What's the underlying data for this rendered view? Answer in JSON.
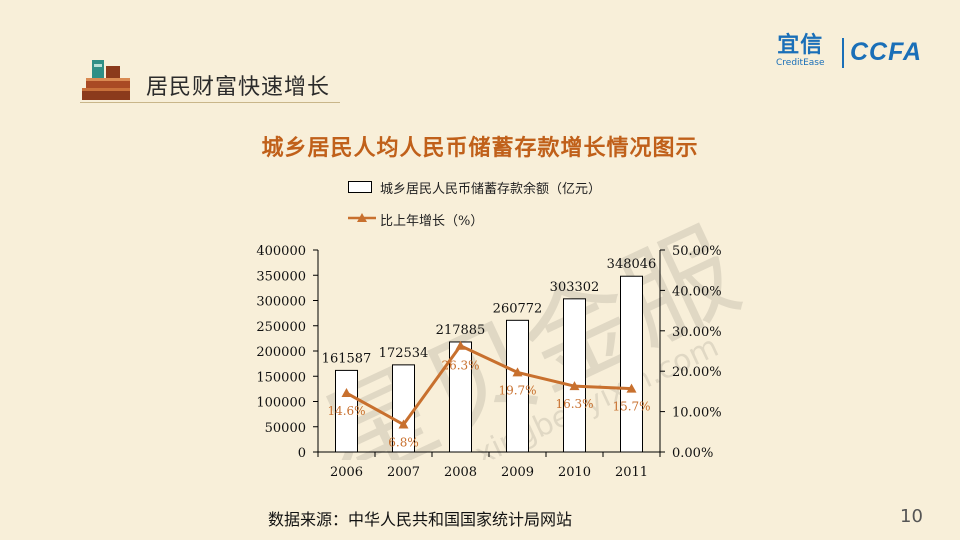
{
  "header": {
    "section_title": "居民财富快速增长"
  },
  "logos": {
    "yixin_cn": "宜信",
    "yixin_en": "CreditEase",
    "ccfa": "CCFA"
  },
  "chart_data": {
    "type": "bar+line",
    "title": "城乡居民人均人民币储蓄存款增长情况图示",
    "categories": [
      "2006",
      "2007",
      "2008",
      "2009",
      "2010",
      "2011"
    ],
    "series": [
      {
        "name": "城乡居民人民币储蓄存款余额（亿元）",
        "type": "bar",
        "axis": "left",
        "values": [
          161587,
          172534,
          217885,
          260772,
          303302,
          348046
        ],
        "labels": [
          "161587",
          "172534",
          "217885",
          "260772",
          "303302",
          "348046"
        ]
      },
      {
        "name": "比上年增长（%）",
        "type": "line",
        "axis": "right",
        "values": [
          14.6,
          6.8,
          26.3,
          19.7,
          16.3,
          15.7
        ],
        "labels": [
          "14.6%",
          "6.8%",
          "26.3%",
          "19.7%",
          "16.3%",
          "15.7%"
        ]
      }
    ],
    "y_left": {
      "range": [
        0,
        400000
      ],
      "ticks": [
        "0",
        "50000",
        "100000",
        "150000",
        "200000",
        "250000",
        "300000",
        "350000",
        "400000"
      ]
    },
    "y_right": {
      "range": [
        0,
        50
      ],
      "ticks": [
        "0.00%",
        "10.00%",
        "20.00%",
        "30.00%",
        "40.00%",
        "50.00%"
      ]
    },
    "grid": false,
    "legend_position": "top-left",
    "colors": {
      "bar_fill": "#ffffff",
      "bar_stroke": "#000000",
      "line": "#c8702e",
      "title": "#c0601a"
    }
  },
  "footer": {
    "source": "数据来源：中华人民共和国国家统计局网站",
    "page_number": "10"
  },
  "watermark": {
    "text_cn": "星贝金服",
    "text_en": "xingbei.yixin.com"
  }
}
